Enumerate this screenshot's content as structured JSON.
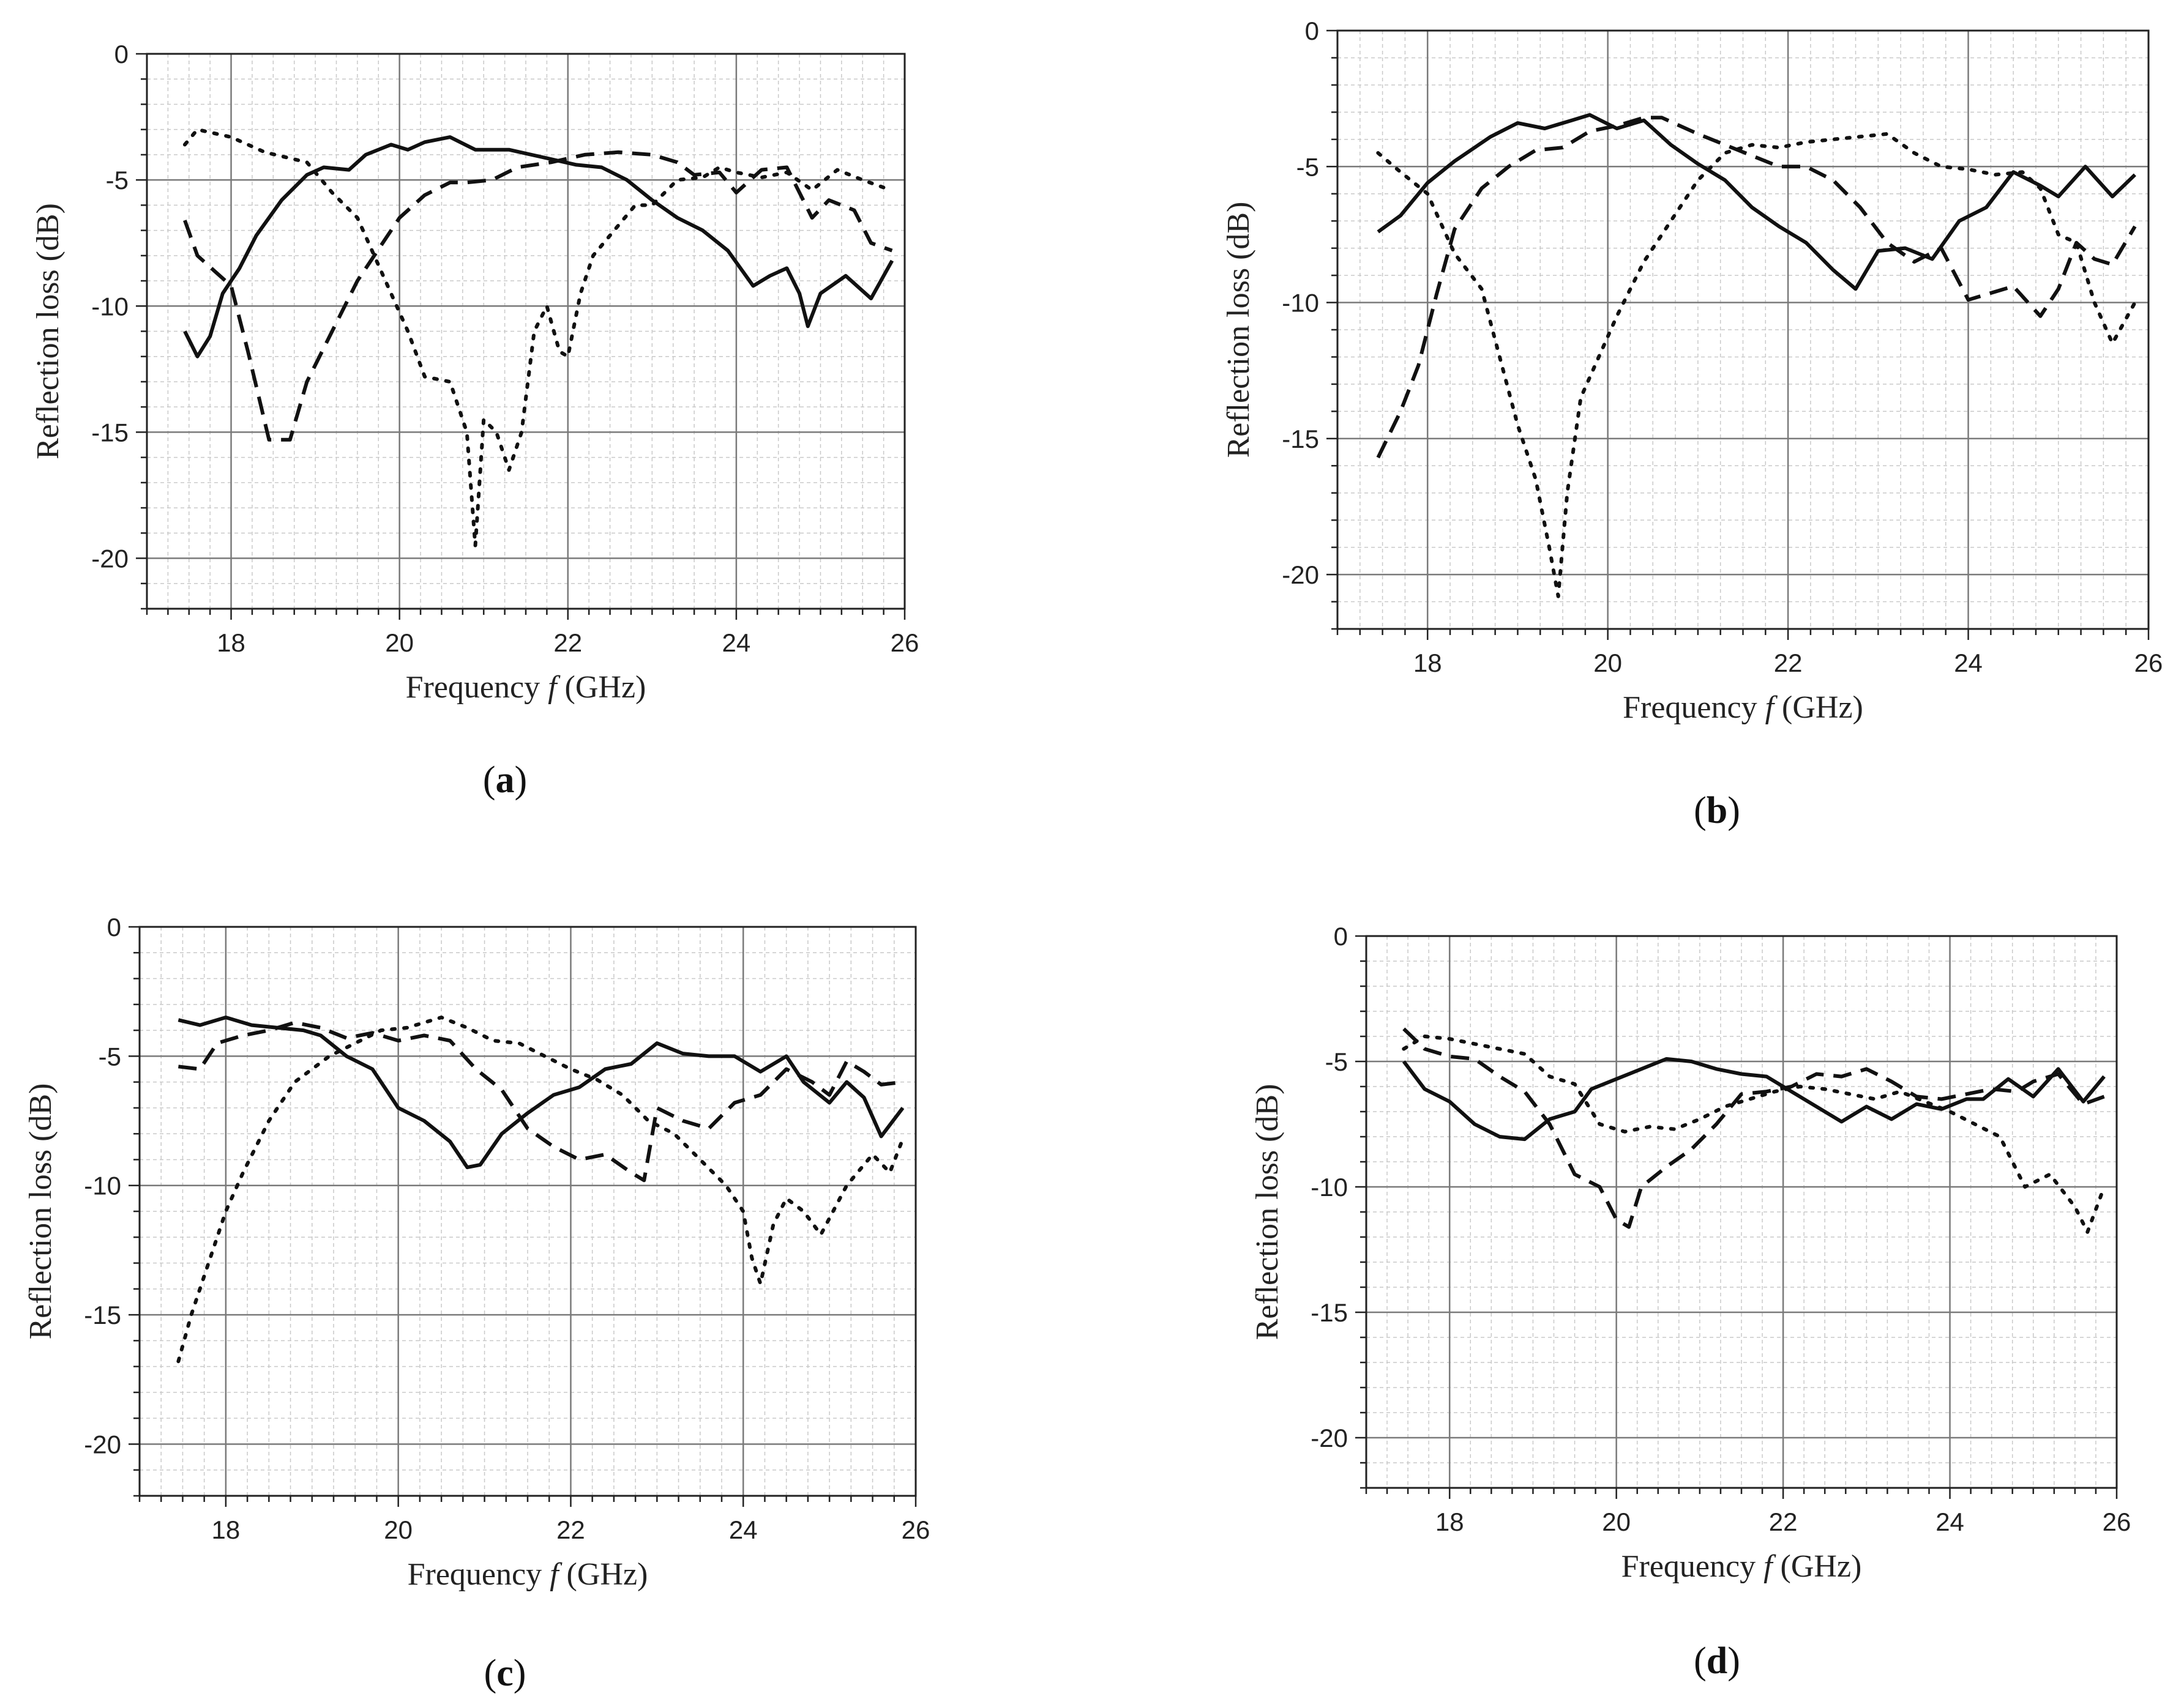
{
  "figure": {
    "panels": [
      "a",
      "b",
      "c",
      "d"
    ]
  },
  "chart_data": [
    {
      "type": "line",
      "panel": "a",
      "caption_open": "(",
      "caption_letter": "a",
      "caption_close": ")",
      "xlabel_prefix": "Frequency ",
      "xlabel_var": "f",
      "xlabel_suffix": " (GHz)",
      "ylabel": "Reflection loss (dB)",
      "xlim": [
        17,
        26
      ],
      "ylim": [
        -22,
        0
      ],
      "xticks": [
        18,
        20,
        22,
        24,
        26
      ],
      "xtick_labels": [
        "18",
        "20",
        "22",
        "24",
        "26"
      ],
      "yticks": [
        0,
        -5,
        -10,
        -15,
        -20
      ],
      "ytick_labels": [
        "0",
        "-5",
        "-10",
        "-15",
        "-20"
      ],
      "grid": true,
      "series": [
        {
          "name": "solid",
          "style": "solid",
          "x": [
            17.45,
            17.6,
            17.75,
            17.9,
            18.1,
            18.3,
            18.6,
            18.9,
            19.1,
            19.4,
            19.6,
            19.9,
            20.1,
            20.3,
            20.6,
            20.9,
            21.3,
            21.7,
            22.1,
            22.4,
            22.7,
            23.0,
            23.3,
            23.6,
            23.9,
            24.2,
            24.4,
            24.6,
            24.75,
            24.85,
            25.0,
            25.3,
            25.6,
            25.85
          ],
          "y": [
            -11,
            -12,
            -11.2,
            -9.5,
            -8.5,
            -7.2,
            -5.8,
            -4.8,
            -4.5,
            -4.6,
            -4.0,
            -3.6,
            -3.8,
            -3.5,
            -3.3,
            -3.8,
            -3.8,
            -4.1,
            -4.4,
            -4.5,
            -5.0,
            -5.8,
            -6.5,
            -7.0,
            -7.8,
            -9.2,
            -8.8,
            -8.5,
            -9.5,
            -10.8,
            -9.5,
            -8.8,
            -9.7,
            -8.2
          ]
        },
        {
          "name": "dashed",
          "style": "dashed",
          "x": [
            17.45,
            17.6,
            17.8,
            18.0,
            18.2,
            18.45,
            18.7,
            18.9,
            19.2,
            19.5,
            19.8,
            20.0,
            20.3,
            20.6,
            20.8,
            21.1,
            21.4,
            21.8,
            22.2,
            22.6,
            23.0,
            23.3,
            23.5,
            23.8,
            24.0,
            24.3,
            24.6,
            24.9,
            25.1,
            25.4,
            25.6,
            25.85
          ],
          "y": [
            -6.6,
            -8,
            -8.6,
            -9.2,
            -11.8,
            -15.3,
            -15.3,
            -13,
            -11,
            -9,
            -7.5,
            -6.5,
            -5.6,
            -5.1,
            -5.1,
            -5.0,
            -4.5,
            -4.3,
            -4.0,
            -3.9,
            -4.0,
            -4.3,
            -4.8,
            -4.7,
            -5.5,
            -4.6,
            -4.5,
            -6.5,
            -5.8,
            -6.2,
            -7.5,
            -7.8
          ]
        },
        {
          "name": "dotted",
          "style": "dotted",
          "x": [
            17.45,
            17.6,
            18.0,
            18.4,
            18.9,
            19.2,
            19.5,
            19.7,
            19.9,
            20.1,
            20.3,
            20.6,
            20.8,
            20.9,
            21.0,
            21.15,
            21.3,
            21.45,
            21.6,
            21.75,
            21.9,
            22.0,
            22.15,
            22.3,
            22.5,
            22.8,
            23.0,
            23.3,
            23.6,
            23.8,
            24.0,
            24.3,
            24.6,
            24.9,
            25.2,
            25.5,
            25.75
          ],
          "y": [
            -3.6,
            -3.0,
            -3.3,
            -3.9,
            -4.3,
            -5.5,
            -6.5,
            -8.0,
            -9.5,
            -11,
            -12.8,
            -13,
            -15,
            -19.5,
            -14.5,
            -15,
            -16.5,
            -15,
            -11,
            -10,
            -11.8,
            -12,
            -9.5,
            -8.0,
            -7.2,
            -6.0,
            -6.0,
            -5.0,
            -4.9,
            -4.5,
            -4.7,
            -4.9,
            -4.7,
            -5.4,
            -4.6,
            -5.0,
            -5.3
          ]
        }
      ]
    },
    {
      "type": "line",
      "panel": "b",
      "caption_open": "(",
      "caption_letter": "b",
      "caption_close": ")",
      "xlabel_prefix": "Frequency ",
      "xlabel_var": "f",
      "xlabel_suffix": " (GHz)",
      "ylabel": "Reflection loss (dB)",
      "xlim": [
        17,
        26
      ],
      "ylim": [
        -22,
        0
      ],
      "xticks": [
        18,
        20,
        22,
        24,
        26
      ],
      "xtick_labels": [
        "18",
        "20",
        "22",
        "24",
        "26"
      ],
      "yticks": [
        0,
        -5,
        -10,
        -15,
        -20
      ],
      "ytick_labels": [
        "0",
        "-5",
        "-10",
        "-15",
        "-20"
      ],
      "grid": true,
      "series": [
        {
          "name": "solid",
          "style": "solid",
          "x": [
            17.45,
            17.7,
            18.0,
            18.3,
            18.7,
            19.0,
            19.3,
            19.6,
            19.8,
            20.1,
            20.4,
            20.7,
            21.0,
            21.3,
            21.6,
            21.9,
            22.2,
            22.5,
            22.75,
            23.0,
            23.3,
            23.6,
            23.9,
            24.2,
            24.5,
            24.8,
            25.0,
            25.3,
            25.6,
            25.85
          ],
          "y": [
            -7.4,
            -6.8,
            -5.6,
            -4.8,
            -3.9,
            -3.4,
            -3.6,
            -3.3,
            -3.1,
            -3.6,
            -3.3,
            -4.2,
            -4.9,
            -5.5,
            -6.5,
            -7.2,
            -7.8,
            -8.8,
            -9.5,
            -8.1,
            -8.0,
            -8.4,
            -7.0,
            -6.5,
            -5.2,
            -5.7,
            -6.1,
            -5.0,
            -6.1,
            -5.3
          ]
        },
        {
          "name": "dashed",
          "style": "dashed",
          "x": [
            17.45,
            17.7,
            17.9,
            18.1,
            18.3,
            18.6,
            18.9,
            19.2,
            19.5,
            19.8,
            20.1,
            20.4,
            20.6,
            20.8,
            21.0,
            21.3,
            21.6,
            21.9,
            22.2,
            22.5,
            22.8,
            23.1,
            23.4,
            23.7,
            24.0,
            24.2,
            24.5,
            24.8,
            25.0,
            25.2,
            25.4,
            25.6,
            25.85
          ],
          "y": [
            -15.7,
            -14.0,
            -12.3,
            -9.7,
            -7.3,
            -5.8,
            -5.0,
            -4.4,
            -4.3,
            -3.7,
            -3.5,
            -3.2,
            -3.2,
            -3.5,
            -3.8,
            -4.2,
            -4.6,
            -5.0,
            -5.0,
            -5.5,
            -6.5,
            -7.8,
            -8.5,
            -8.0,
            -9.9,
            -9.7,
            -9.4,
            -10.5,
            -9.5,
            -7.8,
            -8.4,
            -8.6,
            -7.2
          ]
        },
        {
          "name": "dotted",
          "style": "dotted",
          "x": [
            17.45,
            17.7,
            18.0,
            18.3,
            18.6,
            18.8,
            19.0,
            19.2,
            19.35,
            19.45,
            19.55,
            19.7,
            19.9,
            20.1,
            20.4,
            20.7,
            21.0,
            21.3,
            21.6,
            21.9,
            22.2,
            22.5,
            22.8,
            23.1,
            23.4,
            23.7,
            24.0,
            24.3,
            24.6,
            24.8,
            25.0,
            25.2,
            25.4,
            25.6,
            25.85
          ],
          "y": [
            -4.5,
            -5.2,
            -6.0,
            -8.2,
            -9.5,
            -12.0,
            -14.5,
            -16.5,
            -19.0,
            -20.8,
            -17.0,
            -13.5,
            -12.0,
            -10.5,
            -8.5,
            -7.0,
            -5.5,
            -4.5,
            -4.2,
            -4.3,
            -4.1,
            -4.0,
            -3.9,
            -3.8,
            -4.5,
            -5.0,
            -5.1,
            -5.3,
            -5.2,
            -5.8,
            -7.5,
            -7.8,
            -10.0,
            -11.5,
            -10.0
          ]
        }
      ]
    },
    {
      "type": "line",
      "panel": "c",
      "caption_open": "(",
      "caption_letter": "c",
      "caption_close": ")",
      "xlabel_prefix": "Frequency ",
      "xlabel_var": "f",
      "xlabel_suffix": " (GHz)",
      "ylabel": "Reflection loss (dB)",
      "xlim": [
        17,
        26
      ],
      "ylim": [
        -22,
        0
      ],
      "xticks": [
        18,
        20,
        22,
        24,
        26
      ],
      "xtick_labels": [
        "18",
        "20",
        "22",
        "24",
        "26"
      ],
      "yticks": [
        0,
        -5,
        -10,
        -15,
        -20
      ],
      "ytick_labels": [
        "0",
        "-5",
        "-10",
        "-15",
        "-20"
      ],
      "grid": true,
      "series": [
        {
          "name": "solid",
          "style": "solid",
          "x": [
            17.45,
            17.7,
            18.0,
            18.3,
            18.6,
            18.9,
            19.1,
            19.4,
            19.7,
            20.0,
            20.3,
            20.6,
            20.8,
            20.95,
            21.2,
            21.5,
            21.8,
            22.1,
            22.4,
            22.7,
            23.0,
            23.3,
            23.6,
            23.9,
            24.2,
            24.5,
            24.7,
            25.0,
            25.2,
            25.4,
            25.6,
            25.85
          ],
          "y": [
            -3.6,
            -3.8,
            -3.5,
            -3.8,
            -3.9,
            -4.0,
            -4.2,
            -5.0,
            -5.5,
            -7.0,
            -7.5,
            -8.3,
            -9.3,
            -9.2,
            -8.0,
            -7.2,
            -6.5,
            -6.2,
            -5.5,
            -5.3,
            -4.5,
            -4.9,
            -5.0,
            -5.0,
            -5.6,
            -5.0,
            -6.0,
            -6.8,
            -6.0,
            -6.6,
            -8.1,
            -7.0
          ]
        },
        {
          "name": "dashed",
          "style": "dashed",
          "x": [
            17.45,
            17.7,
            17.9,
            18.2,
            18.5,
            18.8,
            19.1,
            19.4,
            19.7,
            20.0,
            20.3,
            20.6,
            20.9,
            21.2,
            21.5,
            21.8,
            22.1,
            22.4,
            22.7,
            22.85,
            23.0,
            23.3,
            23.6,
            23.9,
            24.2,
            24.5,
            24.8,
            25.0,
            25.2,
            25.4,
            25.6,
            25.85
          ],
          "y": [
            -5.4,
            -5.5,
            -4.5,
            -4.2,
            -4.0,
            -3.7,
            -3.9,
            -4.3,
            -4.1,
            -4.4,
            -4.2,
            -4.4,
            -5.5,
            -6.3,
            -7.8,
            -8.5,
            -9.0,
            -8.8,
            -9.5,
            -9.8,
            -7.0,
            -7.5,
            -7.8,
            -6.8,
            -6.5,
            -5.5,
            -6.0,
            -6.5,
            -5.2,
            -5.6,
            -6.1,
            -6.0
          ]
        },
        {
          "name": "dotted",
          "style": "dotted",
          "x": [
            17.45,
            17.6,
            17.8,
            18.0,
            18.2,
            18.5,
            18.8,
            19.2,
            19.5,
            19.8,
            20.1,
            20.5,
            20.8,
            21.1,
            21.4,
            21.7,
            22.0,
            22.3,
            22.6,
            22.9,
            23.2,
            23.5,
            23.8,
            24.0,
            24.1,
            24.2,
            24.35,
            24.5,
            24.7,
            24.9,
            25.2,
            25.5,
            25.7,
            25.85
          ],
          "y": [
            -16.8,
            -15.0,
            -13.0,
            -11.0,
            -9.5,
            -7.5,
            -6.0,
            -5.0,
            -4.5,
            -4.0,
            -3.9,
            -3.5,
            -3.9,
            -4.4,
            -4.5,
            -5.0,
            -5.5,
            -5.9,
            -6.5,
            -7.5,
            -8.0,
            -9.0,
            -10.0,
            -11.0,
            -12.8,
            -13.8,
            -11.5,
            -10.5,
            -11.0,
            -11.9,
            -10.0,
            -8.8,
            -9.5,
            -8.2
          ]
        }
      ]
    },
    {
      "type": "line",
      "panel": "d",
      "caption_open": "(",
      "caption_letter": "d",
      "caption_close": ")",
      "xlabel_prefix": "Frequency ",
      "xlabel_var": "f",
      "xlabel_suffix": " (GHz)",
      "ylabel": "Reflection loss (dB)",
      "xlim": [
        17,
        26
      ],
      "ylim": [
        -22,
        0
      ],
      "xticks": [
        18,
        20,
        22,
        24,
        26
      ],
      "xtick_labels": [
        "18",
        "20",
        "22",
        "24",
        "26"
      ],
      "yticks": [
        0,
        -5,
        -10,
        -15,
        -20
      ],
      "ytick_labels": [
        "0",
        "-5",
        "-10",
        "-15",
        "-20"
      ],
      "grid": true,
      "series": [
        {
          "name": "solid",
          "style": "solid",
          "x": [
            17.45,
            17.7,
            18.0,
            18.3,
            18.6,
            18.9,
            19.2,
            19.5,
            19.7,
            20.0,
            20.3,
            20.6,
            20.9,
            21.2,
            21.5,
            21.8,
            22.1,
            22.4,
            22.7,
            23.0,
            23.3,
            23.6,
            23.9,
            24.2,
            24.4,
            24.7,
            25.0,
            25.3,
            25.6,
            25.85
          ],
          "y": [
            -5.0,
            -6.1,
            -6.6,
            -7.5,
            -8.0,
            -8.1,
            -7.3,
            -7.0,
            -6.1,
            -5.7,
            -5.3,
            -4.9,
            -5.0,
            -5.3,
            -5.5,
            -5.6,
            -6.2,
            -6.8,
            -7.4,
            -6.8,
            -7.3,
            -6.7,
            -6.9,
            -6.5,
            -6.5,
            -5.7,
            -6.4,
            -5.3,
            -6.6,
            -5.6
          ]
        },
        {
          "name": "dashed",
          "style": "dashed",
          "x": [
            17.45,
            17.7,
            18.0,
            18.3,
            18.6,
            18.9,
            19.2,
            19.5,
            19.8,
            20.0,
            20.15,
            20.3,
            20.6,
            20.9,
            21.2,
            21.5,
            21.8,
            22.1,
            22.4,
            22.7,
            23.0,
            23.3,
            23.6,
            23.9,
            24.2,
            24.5,
            24.8,
            25.0,
            25.3,
            25.6,
            25.85
          ],
          "y": [
            -3.7,
            -4.5,
            -4.8,
            -4.9,
            -5.6,
            -6.2,
            -7.5,
            -9.5,
            -10.0,
            -11.3,
            -11.6,
            -10.0,
            -9.2,
            -8.5,
            -7.5,
            -6.3,
            -6.2,
            -6.0,
            -5.5,
            -5.6,
            -5.3,
            -5.8,
            -6.4,
            -6.5,
            -6.3,
            -6.1,
            -6.2,
            -5.8,
            -5.5,
            -6.7,
            -6.4
          ]
        },
        {
          "name": "dotted",
          "style": "dotted",
          "x": [
            17.45,
            17.7,
            18.0,
            18.3,
            18.6,
            18.9,
            19.2,
            19.5,
            19.8,
            20.1,
            20.4,
            20.7,
            21.0,
            21.3,
            21.6,
            21.9,
            22.2,
            22.5,
            22.8,
            23.1,
            23.4,
            23.7,
            24.0,
            24.3,
            24.6,
            24.9,
            25.2,
            25.5,
            25.65,
            25.85
          ],
          "y": [
            -4.5,
            -4.0,
            -4.1,
            -4.3,
            -4.5,
            -4.7,
            -5.6,
            -5.9,
            -7.5,
            -7.8,
            -7.6,
            -7.7,
            -7.3,
            -6.8,
            -6.5,
            -6.2,
            -6.0,
            -6.1,
            -6.3,
            -6.5,
            -6.2,
            -6.6,
            -7.0,
            -7.5,
            -8.0,
            -10.0,
            -9.5,
            -10.8,
            -11.8,
            -10.0
          ]
        }
      ]
    }
  ]
}
